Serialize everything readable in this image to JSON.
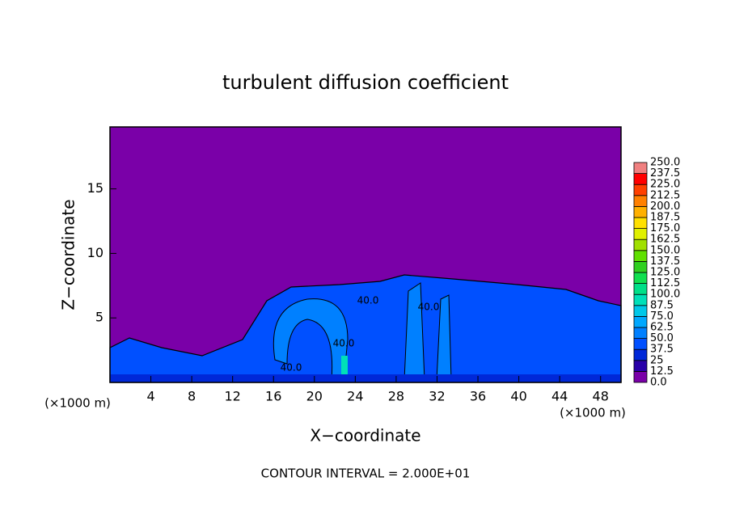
{
  "chart_data": {
    "type": "contour",
    "title": "turbulent diffusion coefficient",
    "xlabel": "X−coordinate",
    "ylabel": "Z−coordinate",
    "x_unit": "(×1000 m)",
    "y_unit": "(×1000 m)",
    "note": "CONTOUR INTERVAL = 2.000E+01",
    "contour_labels": [
      "40.0",
      "40.0",
      "40.0",
      "40.0"
    ],
    "xlim": [
      0,
      50
    ],
    "ylim": [
      0,
      19.8
    ],
    "xticks": [
      4,
      8,
      12,
      16,
      20,
      24,
      28,
      32,
      36,
      40,
      44,
      48
    ],
    "yticks": [
      5,
      10,
      15
    ],
    "colorbar": {
      "ticks": [
        {
          "value": 0,
          "label": "0.0"
        },
        12.5,
        25,
        37.5,
        {
          "value": 50,
          "label": "50.0"
        },
        62.5,
        {
          "value": 75,
          "label": "75.0"
        },
        87.5,
        {
          "value": 100,
          "label": "100.0"
        },
        112.5,
        {
          "value": 125,
          "label": "125.0"
        },
        137.5,
        {
          "value": 150,
          "label": "150.0"
        },
        162.5,
        {
          "value": 175,
          "label": "175.0"
        },
        187.5,
        {
          "value": 200,
          "label": "200.0"
        },
        212.5,
        {
          "value": 225,
          "label": "225.0"
        },
        237.5,
        {
          "value": 250,
          "label": "250.0"
        }
      ],
      "colors": [
        "#7a00a8",
        "#2800a8",
        "#0028d8",
        "#0050ff",
        "#0080ff",
        "#00a8ff",
        "#00c8e8",
        "#00e0b8",
        "#00e088",
        "#10e050",
        "#30d020",
        "#60e000",
        "#a0e000",
        "#e0f000",
        "#ffe000",
        "#ffb000",
        "#ff8000",
        "#ff4000",
        "#ff0000",
        "#f08080"
      ]
    }
  }
}
